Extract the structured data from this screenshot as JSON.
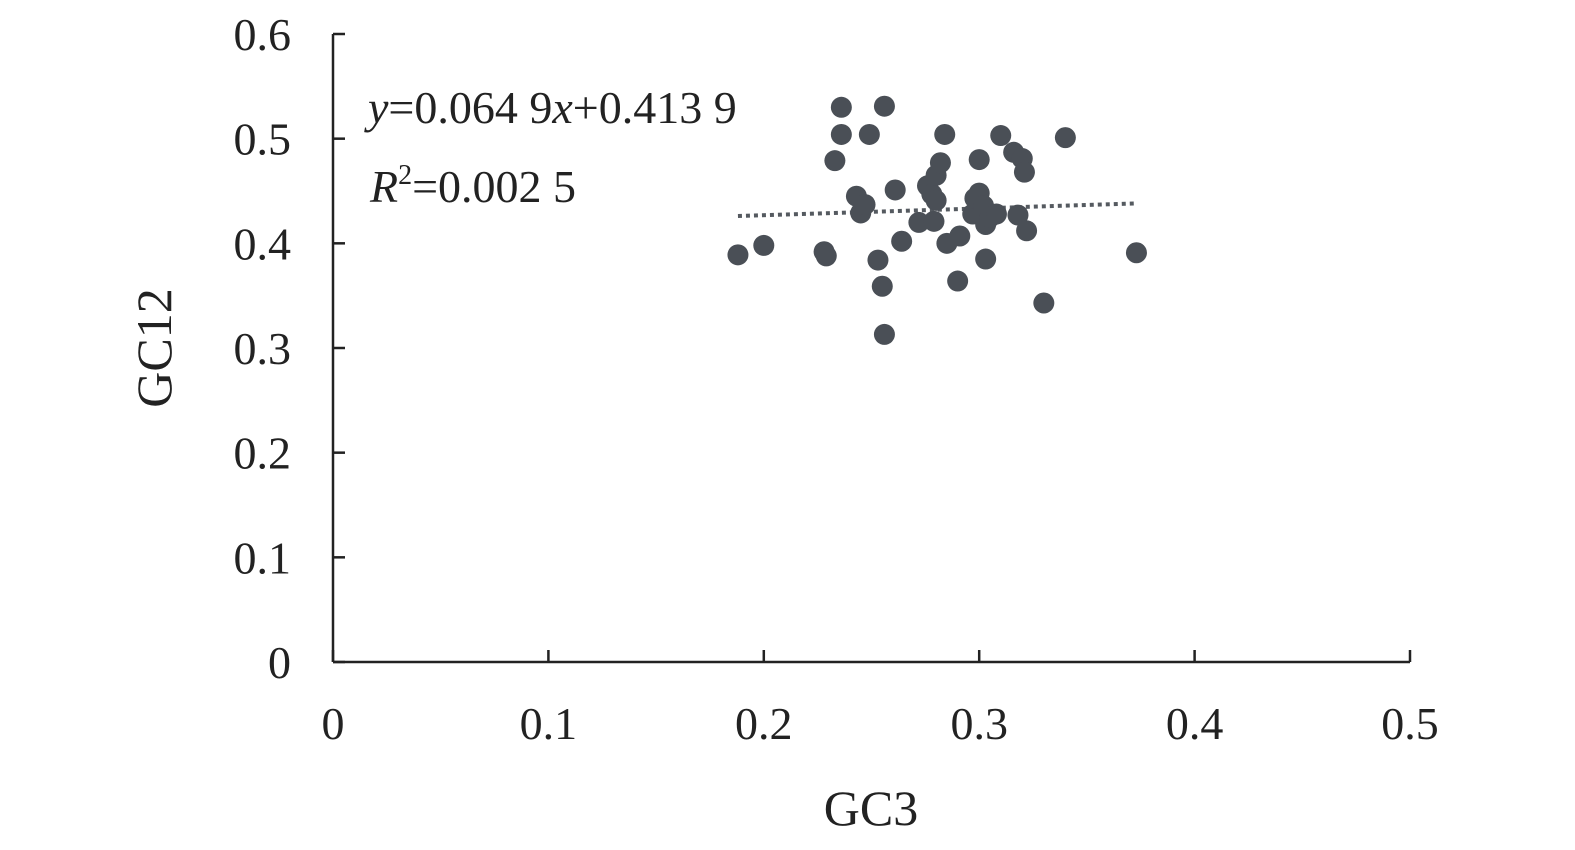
{
  "chart_data": {
    "type": "scatter",
    "xlabel": "GC3",
    "ylabel": "GC12",
    "xlim": [
      0,
      0.5
    ],
    "ylim": [
      0,
      0.6
    ],
    "x_ticks": [
      "0",
      "0.1",
      "0.2",
      "0.3",
      "0.4",
      "0.5"
    ],
    "y_ticks": [
      "0",
      "0.1",
      "0.2",
      "0.3",
      "0.4",
      "0.5",
      "0.6"
    ],
    "x_tick_values": [
      0,
      0.1,
      0.2,
      0.3,
      0.4,
      0.5
    ],
    "y_tick_values": [
      0,
      0.1,
      0.2,
      0.3,
      0.4,
      0.5,
      0.6
    ],
    "grid": false,
    "point_color": "#4a4f56",
    "trendline_color": "#555a60",
    "equation": {
      "y_symbol": "y",
      "y_rest": "=0.064 9",
      "x_symbol": "x",
      "x_rest": "+0.413 9",
      "r_symbol": "R",
      "r_sup": "2",
      "r_rest": "=0.002 5"
    },
    "trendline": {
      "slope": 0.0649,
      "intercept": 0.4139,
      "x_range": [
        0.188,
        0.372
      ]
    },
    "series": [
      {
        "points": [
          [
            0.188,
            0.389
          ],
          [
            0.2,
            0.398
          ],
          [
            0.228,
            0.392
          ],
          [
            0.229,
            0.388
          ],
          [
            0.233,
            0.479
          ],
          [
            0.236,
            0.53
          ],
          [
            0.236,
            0.504
          ],
          [
            0.243,
            0.445
          ],
          [
            0.245,
            0.429
          ],
          [
            0.247,
            0.437
          ],
          [
            0.249,
            0.504
          ],
          [
            0.253,
            0.384
          ],
          [
            0.255,
            0.359
          ],
          [
            0.256,
            0.531
          ],
          [
            0.256,
            0.313
          ],
          [
            0.261,
            0.451
          ],
          [
            0.264,
            0.402
          ],
          [
            0.272,
            0.42
          ],
          [
            0.276,
            0.455
          ],
          [
            0.278,
            0.447
          ],
          [
            0.279,
            0.421
          ],
          [
            0.28,
            0.465
          ],
          [
            0.28,
            0.441
          ],
          [
            0.282,
            0.477
          ],
          [
            0.284,
            0.504
          ],
          [
            0.285,
            0.4
          ],
          [
            0.29,
            0.364
          ],
          [
            0.291,
            0.407
          ],
          [
            0.297,
            0.428
          ],
          [
            0.298,
            0.443
          ],
          [
            0.3,
            0.448
          ],
          [
            0.3,
            0.48
          ],
          [
            0.302,
            0.436
          ],
          [
            0.303,
            0.385
          ],
          [
            0.303,
            0.418
          ],
          [
            0.305,
            0.425
          ],
          [
            0.308,
            0.428
          ],
          [
            0.31,
            0.503
          ],
          [
            0.316,
            0.487
          ],
          [
            0.318,
            0.427
          ],
          [
            0.32,
            0.481
          ],
          [
            0.321,
            0.468
          ],
          [
            0.322,
            0.412
          ],
          [
            0.33,
            0.343
          ],
          [
            0.34,
            0.501
          ],
          [
            0.373,
            0.391
          ]
        ]
      }
    ]
  }
}
